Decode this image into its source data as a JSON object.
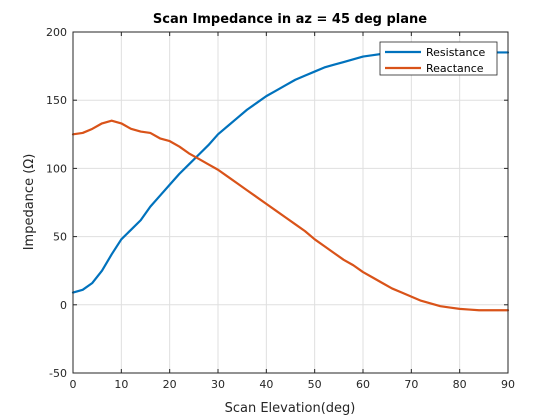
{
  "chart_data": {
    "type": "line",
    "title": "Scan Impedance in az = 45 deg plane",
    "xlabel": "Scan Elevation(deg)",
    "ylabel": "Impedance (Ω)",
    "xlim": [
      0,
      90
    ],
    "ylim": [
      -50,
      200
    ],
    "xticks": [
      0,
      10,
      20,
      30,
      40,
      50,
      60,
      70,
      80,
      90
    ],
    "yticks": [
      -50,
      0,
      50,
      100,
      150,
      200
    ],
    "grid": true,
    "legend_position": "top-right",
    "series": [
      {
        "name": "Resistance",
        "color": "#0072BD",
        "x": [
          0,
          2,
          4,
          6,
          8,
          10,
          12,
          14,
          16,
          18,
          20,
          22,
          24,
          26,
          28,
          30,
          32,
          34,
          36,
          38,
          40,
          42,
          44,
          46,
          48,
          50,
          52,
          54,
          56,
          58,
          60,
          62,
          64,
          66,
          68,
          70,
          72,
          74,
          76,
          78,
          80,
          82,
          84,
          86,
          88,
          90
        ],
        "y": [
          9,
          11,
          16,
          25,
          37,
          48,
          55,
          62,
          72,
          80,
          88,
          96,
          103,
          110,
          117,
          125,
          131,
          137,
          143,
          148,
          153,
          157,
          161,
          165,
          168,
          171,
          174,
          176,
          178,
          180,
          182,
          183,
          184,
          185,
          185,
          185,
          185,
          185,
          185,
          185,
          185,
          185,
          185,
          185,
          185,
          185
        ]
      },
      {
        "name": "Reactance",
        "color": "#D95319",
        "x": [
          0,
          2,
          4,
          6,
          8,
          10,
          12,
          14,
          16,
          18,
          20,
          22,
          24,
          26,
          28,
          30,
          32,
          34,
          36,
          38,
          40,
          42,
          44,
          46,
          48,
          50,
          52,
          54,
          56,
          58,
          60,
          62,
          64,
          66,
          68,
          70,
          72,
          74,
          76,
          78,
          80,
          82,
          84,
          86,
          88,
          90
        ],
        "y": [
          125,
          126,
          129,
          133,
          135,
          133,
          129,
          127,
          126,
          122,
          120,
          116,
          111,
          107,
          103,
          99,
          94,
          89,
          84,
          79,
          74,
          69,
          64,
          59,
          54,
          48,
          43,
          38,
          33,
          29,
          24,
          20,
          16,
          12,
          9,
          6,
          3,
          1,
          -1,
          -2,
          -3,
          -3.5,
          -4,
          -4,
          -4,
          -4
        ]
      }
    ]
  }
}
